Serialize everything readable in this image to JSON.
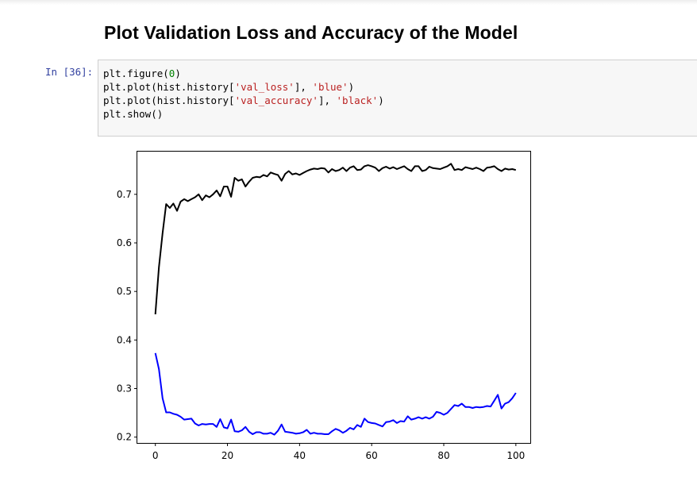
{
  "notebook": {
    "heading": "Plot Validation Loss and Accuracy of the Model",
    "cell": {
      "prompt": "In [36]:",
      "code": [
        [
          {
            "t": "plt.figure("
          },
          {
            "t": "0",
            "c": "num"
          },
          {
            "t": ")"
          }
        ],
        [
          {
            "t": "plt.plot(hist.history["
          },
          {
            "t": "'val_loss'",
            "c": "str"
          },
          {
            "t": "], "
          },
          {
            "t": "'blue'",
            "c": "str"
          },
          {
            "t": ")"
          }
        ],
        [
          {
            "t": "plt.plot(hist.history["
          },
          {
            "t": "'val_accuracy'",
            "c": "str"
          },
          {
            "t": "], "
          },
          {
            "t": "'black'",
            "c": "str"
          },
          {
            "t": ")"
          }
        ],
        [
          {
            "t": "plt.show()"
          }
        ]
      ]
    }
  },
  "chart_data": {
    "type": "line",
    "title": "",
    "xlabel": "",
    "ylabel": "",
    "xlim": [
      -5,
      104
    ],
    "ylim": [
      0.188,
      0.788
    ],
    "xticks": [
      0,
      20,
      40,
      60,
      80,
      100
    ],
    "yticks": [
      0.2,
      0.3,
      0.4,
      0.5,
      0.6,
      0.7
    ],
    "grid": false,
    "series": [
      {
        "color": "#0000ff",
        "values": [
          0.373,
          0.34,
          0.28,
          0.251,
          0.251,
          0.248,
          0.246,
          0.242,
          0.236,
          0.237,
          0.238,
          0.228,
          0.224,
          0.227,
          0.226,
          0.227,
          0.227,
          0.221,
          0.237,
          0.22,
          0.218,
          0.236,
          0.212,
          0.211,
          0.214,
          0.221,
          0.211,
          0.206,
          0.21,
          0.21,
          0.207,
          0.207,
          0.209,
          0.205,
          0.213,
          0.226,
          0.211,
          0.21,
          0.209,
          0.207,
          0.208,
          0.21,
          0.215,
          0.207,
          0.209,
          0.207,
          0.207,
          0.206,
          0.206,
          0.212,
          0.217,
          0.214,
          0.209,
          0.213,
          0.219,
          0.216,
          0.225,
          0.221,
          0.238,
          0.231,
          0.229,
          0.228,
          0.225,
          0.222,
          0.231,
          0.232,
          0.235,
          0.229,
          0.233,
          0.232,
          0.243,
          0.236,
          0.238,
          0.241,
          0.238,
          0.241,
          0.238,
          0.242,
          0.252,
          0.25,
          0.246,
          0.25,
          0.258,
          0.266,
          0.264,
          0.269,
          0.262,
          0.262,
          0.26,
          0.262,
          0.261,
          0.262,
          0.264,
          0.263,
          0.275,
          0.287,
          0.259,
          0.269,
          0.272,
          0.28,
          0.291
        ]
      },
      {
        "color": "#000000",
        "values": [
          0.453,
          0.55,
          0.62,
          0.68,
          0.672,
          0.681,
          0.666,
          0.685,
          0.69,
          0.686,
          0.69,
          0.694,
          0.7,
          0.688,
          0.698,
          0.694,
          0.7,
          0.708,
          0.696,
          0.716,
          0.716,
          0.695,
          0.734,
          0.728,
          0.731,
          0.716,
          0.726,
          0.734,
          0.736,
          0.735,
          0.74,
          0.737,
          0.745,
          0.742,
          0.74,
          0.728,
          0.742,
          0.748,
          0.741,
          0.743,
          0.74,
          0.744,
          0.748,
          0.751,
          0.753,
          0.752,
          0.754,
          0.753,
          0.745,
          0.752,
          0.748,
          0.75,
          0.755,
          0.748,
          0.755,
          0.758,
          0.75,
          0.751,
          0.758,
          0.76,
          0.758,
          0.755,
          0.748,
          0.754,
          0.757,
          0.753,
          0.756,
          0.752,
          0.755,
          0.758,
          0.752,
          0.748,
          0.758,
          0.758,
          0.748,
          0.75,
          0.757,
          0.754,
          0.753,
          0.752,
          0.755,
          0.758,
          0.763,
          0.75,
          0.752,
          0.75,
          0.756,
          0.754,
          0.752,
          0.755,
          0.752,
          0.748,
          0.755,
          0.756,
          0.758,
          0.752,
          0.748,
          0.753,
          0.751,
          0.752,
          0.75
        ]
      }
    ]
  }
}
